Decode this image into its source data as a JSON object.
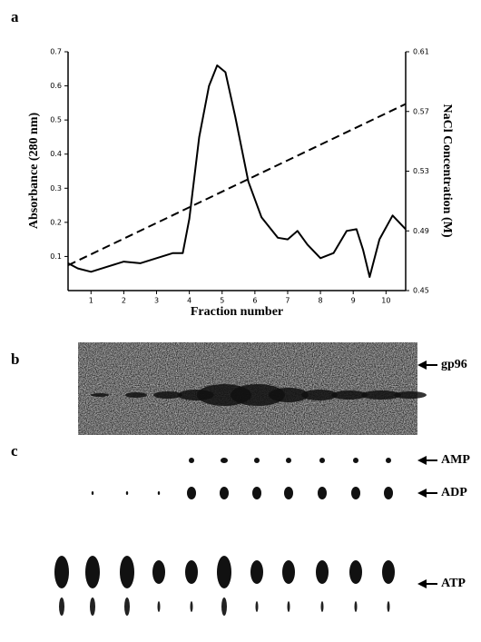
{
  "chart_data": {
    "type": "line",
    "y_label": "Absorbance (280 nm)",
    "y2_label": "NaCl Concentration (M)",
    "x_label": "Fraction number",
    "xlim": [
      0.3,
      10.6
    ],
    "xticks": [
      1,
      2,
      3,
      4,
      5,
      6,
      7,
      8,
      9,
      10
    ],
    "ylim": [
      0,
      0.7
    ],
    "yticks": [
      0.1,
      0.2,
      0.3,
      0.4,
      0.5,
      0.6,
      0.7
    ],
    "y2lim": [
      0.45,
      0.61
    ],
    "y2ticks": [
      0.45,
      0.49,
      0.53,
      0.57,
      0.61
    ],
    "series": [
      {
        "color": "#000000",
        "dash": false,
        "x": [
          0.3,
          0.6,
          1.0,
          1.5,
          2.0,
          2.5,
          3.0,
          3.5,
          3.8,
          4.0,
          4.3,
          4.6,
          4.85,
          5.1,
          5.4,
          5.8,
          6.2,
          6.7,
          7.0,
          7.3,
          7.6,
          8.0,
          8.4,
          8.8,
          9.1,
          9.3,
          9.5,
          9.8,
          10.2,
          10.6
        ],
        "values": [
          0.08,
          0.065,
          0.055,
          0.07,
          0.085,
          0.08,
          0.095,
          0.11,
          0.11,
          0.21,
          0.45,
          0.6,
          0.66,
          0.64,
          0.51,
          0.32,
          0.215,
          0.155,
          0.15,
          0.175,
          0.135,
          0.095,
          0.11,
          0.175,
          0.18,
          0.12,
          0.04,
          0.15,
          0.22,
          0.18
        ]
      },
      {
        "color": "#000000",
        "dash": true,
        "axis": "y2",
        "x": [
          0.3,
          10.6
        ],
        "values": [
          0.467,
          0.575
        ]
      }
    ]
  },
  "panel_labels": [
    "a",
    "b",
    "c"
  ],
  "gel": {
    "band_label": "gp96"
  },
  "tlc": {
    "labels": [
      "AMP",
      "ADP",
      "ATP"
    ]
  }
}
